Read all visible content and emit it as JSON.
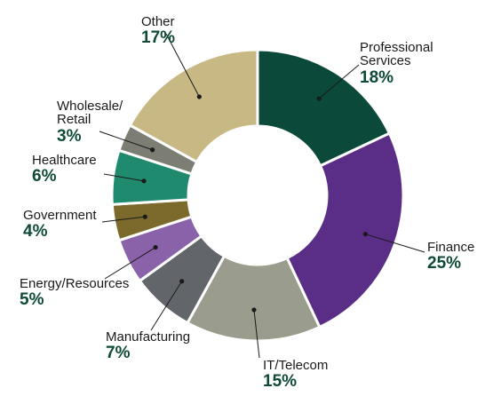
{
  "chart_data": {
    "type": "pie",
    "title": "",
    "style": "donut",
    "slices": [
      {
        "label": "Professional\nServices",
        "value": 18,
        "display": "18%",
        "color": "#0b4a3b"
      },
      {
        "label": "Finance",
        "value": 25,
        "display": "25%",
        "color": "#5a2d86"
      },
      {
        "label": "IT/Telecom",
        "value": 15,
        "display": "15%",
        "color": "#9a9c8d"
      },
      {
        "label": "Manufacturing",
        "value": 7,
        "display": "7%",
        "color": "#62666a"
      },
      {
        "label": "Energy/Resources",
        "value": 5,
        "display": "5%",
        "color": "#8a62a9"
      },
      {
        "label": "Government",
        "value": 4,
        "display": "4%",
        "color": "#7b6a2c"
      },
      {
        "label": "Healthcare",
        "value": 6,
        "display": "6%",
        "color": "#1f8a6e"
      },
      {
        "label": "Wholesale/\nRetail",
        "value": 3,
        "display": "3%",
        "color": "#7c7e74"
      },
      {
        "label": "Other",
        "value": 17,
        "display": "17%",
        "color": "#c7b884"
      }
    ]
  }
}
